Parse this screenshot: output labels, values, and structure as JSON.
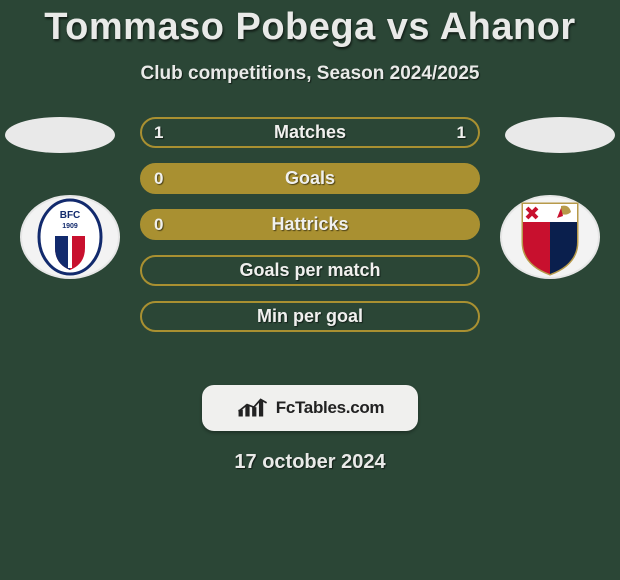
{
  "header": {
    "title": "Tommaso Pobega vs Ahanor",
    "subtitle": "Club competitions, Season 2024/2025",
    "title_fontsize": 38,
    "subtitle_fontsize": 19,
    "text_color": "#e9eae8"
  },
  "colors": {
    "background": "#2b4636",
    "bar_border": "#a99031",
    "bar_fill": "#a99031",
    "ellipse": "#e9e9e9",
    "crest_bg": "#f3f3f3",
    "branding_bg": "#f0f0ee"
  },
  "bars": [
    {
      "label": "Matches",
      "left": "1",
      "right": "1",
      "style": "outline"
    },
    {
      "label": "Goals",
      "left": "0",
      "right": "",
      "style": "filled"
    },
    {
      "label": "Hattricks",
      "left": "0",
      "right": "",
      "style": "filled"
    },
    {
      "label": "Goals per match",
      "left": "",
      "right": "",
      "style": "outline"
    },
    {
      "label": "Min per goal",
      "left": "",
      "right": "",
      "style": "outline"
    }
  ],
  "branding": {
    "text": "FcTables.com"
  },
  "date": "17 october 2024",
  "crests": {
    "left": {
      "name": "bologna-crest"
    },
    "right": {
      "name": "genoa-crest"
    }
  }
}
